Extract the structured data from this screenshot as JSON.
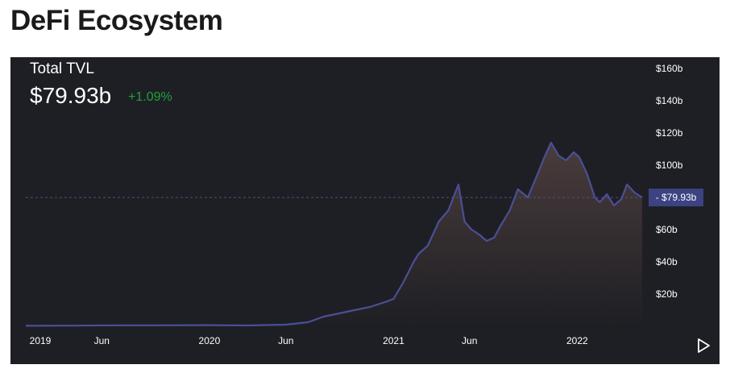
{
  "page": {
    "title": "DeFi Ecosystem"
  },
  "metric": {
    "label": "Total TVL",
    "value": "$79.93b",
    "change": "+1.09%"
  },
  "colors": {
    "panel_bg": "#1e1f24",
    "line": "#4b4f95",
    "fill_top": "#4a3c3c",
    "fill_bottom": "#1e1f24",
    "positive": "#1fa13a",
    "marker_bg": "#3c4282",
    "axis_text": "#ffffff"
  },
  "controls": {
    "play_icon": "play-icon"
  },
  "chart_data": {
    "type": "area",
    "title": "",
    "xlabel": "",
    "ylabel": "",
    "y_unit": "billions USD",
    "x_range": [
      "2019-01-01",
      "2022-05-15"
    ],
    "ylim": [
      0,
      160
    ],
    "x_ticks": [
      {
        "label": "2019",
        "date": "2019-01-01"
      },
      {
        "label": "Jun",
        "date": "2019-06-01"
      },
      {
        "label": "2020",
        "date": "2020-01-01"
      },
      {
        "label": "Jun",
        "date": "2020-06-01"
      },
      {
        "label": "2021",
        "date": "2021-01-01"
      },
      {
        "label": "Jun",
        "date": "2021-06-01"
      },
      {
        "label": "2022",
        "date": "2022-01-01"
      }
    ],
    "y_ticks": [
      {
        "label": "$20b",
        "value": 20
      },
      {
        "label": "$40b",
        "value": 40
      },
      {
        "label": "$60b",
        "value": 60
      },
      {
        "label": "$80b",
        "value": 80
      },
      {
        "label": "$100b",
        "value": 100
      },
      {
        "label": "$120b",
        "value": 120
      },
      {
        "label": "$140b",
        "value": 140
      },
      {
        "label": "$160b",
        "value": 160
      }
    ],
    "current": {
      "label": "$79.93b",
      "value": 79.93
    },
    "grid": false,
    "legend": "none",
    "series": [
      {
        "points": [
          [
            "2019-01-01",
            0.3
          ],
          [
            "2019-04-01",
            0.4
          ],
          [
            "2019-07-01",
            0.6
          ],
          [
            "2019-10-01",
            0.6
          ],
          [
            "2020-01-01",
            0.7
          ],
          [
            "2020-03-15",
            0.5
          ],
          [
            "2020-06-01",
            1.0
          ],
          [
            "2020-07-15",
            2.5
          ],
          [
            "2020-08-15",
            6.0
          ],
          [
            "2020-09-15",
            8.0
          ],
          [
            "2020-10-15",
            10.0
          ],
          [
            "2020-11-15",
            12.0
          ],
          [
            "2020-12-15",
            15.0
          ],
          [
            "2021-01-01",
            17.0
          ],
          [
            "2021-01-20",
            27.0
          ],
          [
            "2021-02-10",
            40.0
          ],
          [
            "2021-02-20",
            45.0
          ],
          [
            "2021-03-10",
            50.0
          ],
          [
            "2021-04-01",
            65.0
          ],
          [
            "2021-04-20",
            72.0
          ],
          [
            "2021-05-10",
            88.0
          ],
          [
            "2021-05-22",
            65.0
          ],
          [
            "2021-06-05",
            60.0
          ],
          [
            "2021-06-20",
            57.0
          ],
          [
            "2021-07-05",
            53.0
          ],
          [
            "2021-07-20",
            55.0
          ],
          [
            "2021-08-01",
            62.0
          ],
          [
            "2021-08-20",
            72.0
          ],
          [
            "2021-09-05",
            85.0
          ],
          [
            "2021-09-25",
            80.0
          ],
          [
            "2021-10-15",
            95.0
          ],
          [
            "2021-10-28",
            105.0
          ],
          [
            "2021-11-10",
            114.0
          ],
          [
            "2021-11-25",
            106.0
          ],
          [
            "2021-12-10",
            103.0
          ],
          [
            "2021-12-25",
            108.0
          ],
          [
            "2022-01-05",
            105.0
          ],
          [
            "2022-01-20",
            95.0
          ],
          [
            "2022-02-05",
            80.0
          ],
          [
            "2022-02-15",
            77.0
          ],
          [
            "2022-03-01",
            82.0
          ],
          [
            "2022-03-15",
            75.0
          ],
          [
            "2022-03-30",
            79.0
          ],
          [
            "2022-04-10",
            88.0
          ],
          [
            "2022-04-25",
            83.0
          ],
          [
            "2022-05-10",
            79.93
          ]
        ]
      }
    ]
  }
}
